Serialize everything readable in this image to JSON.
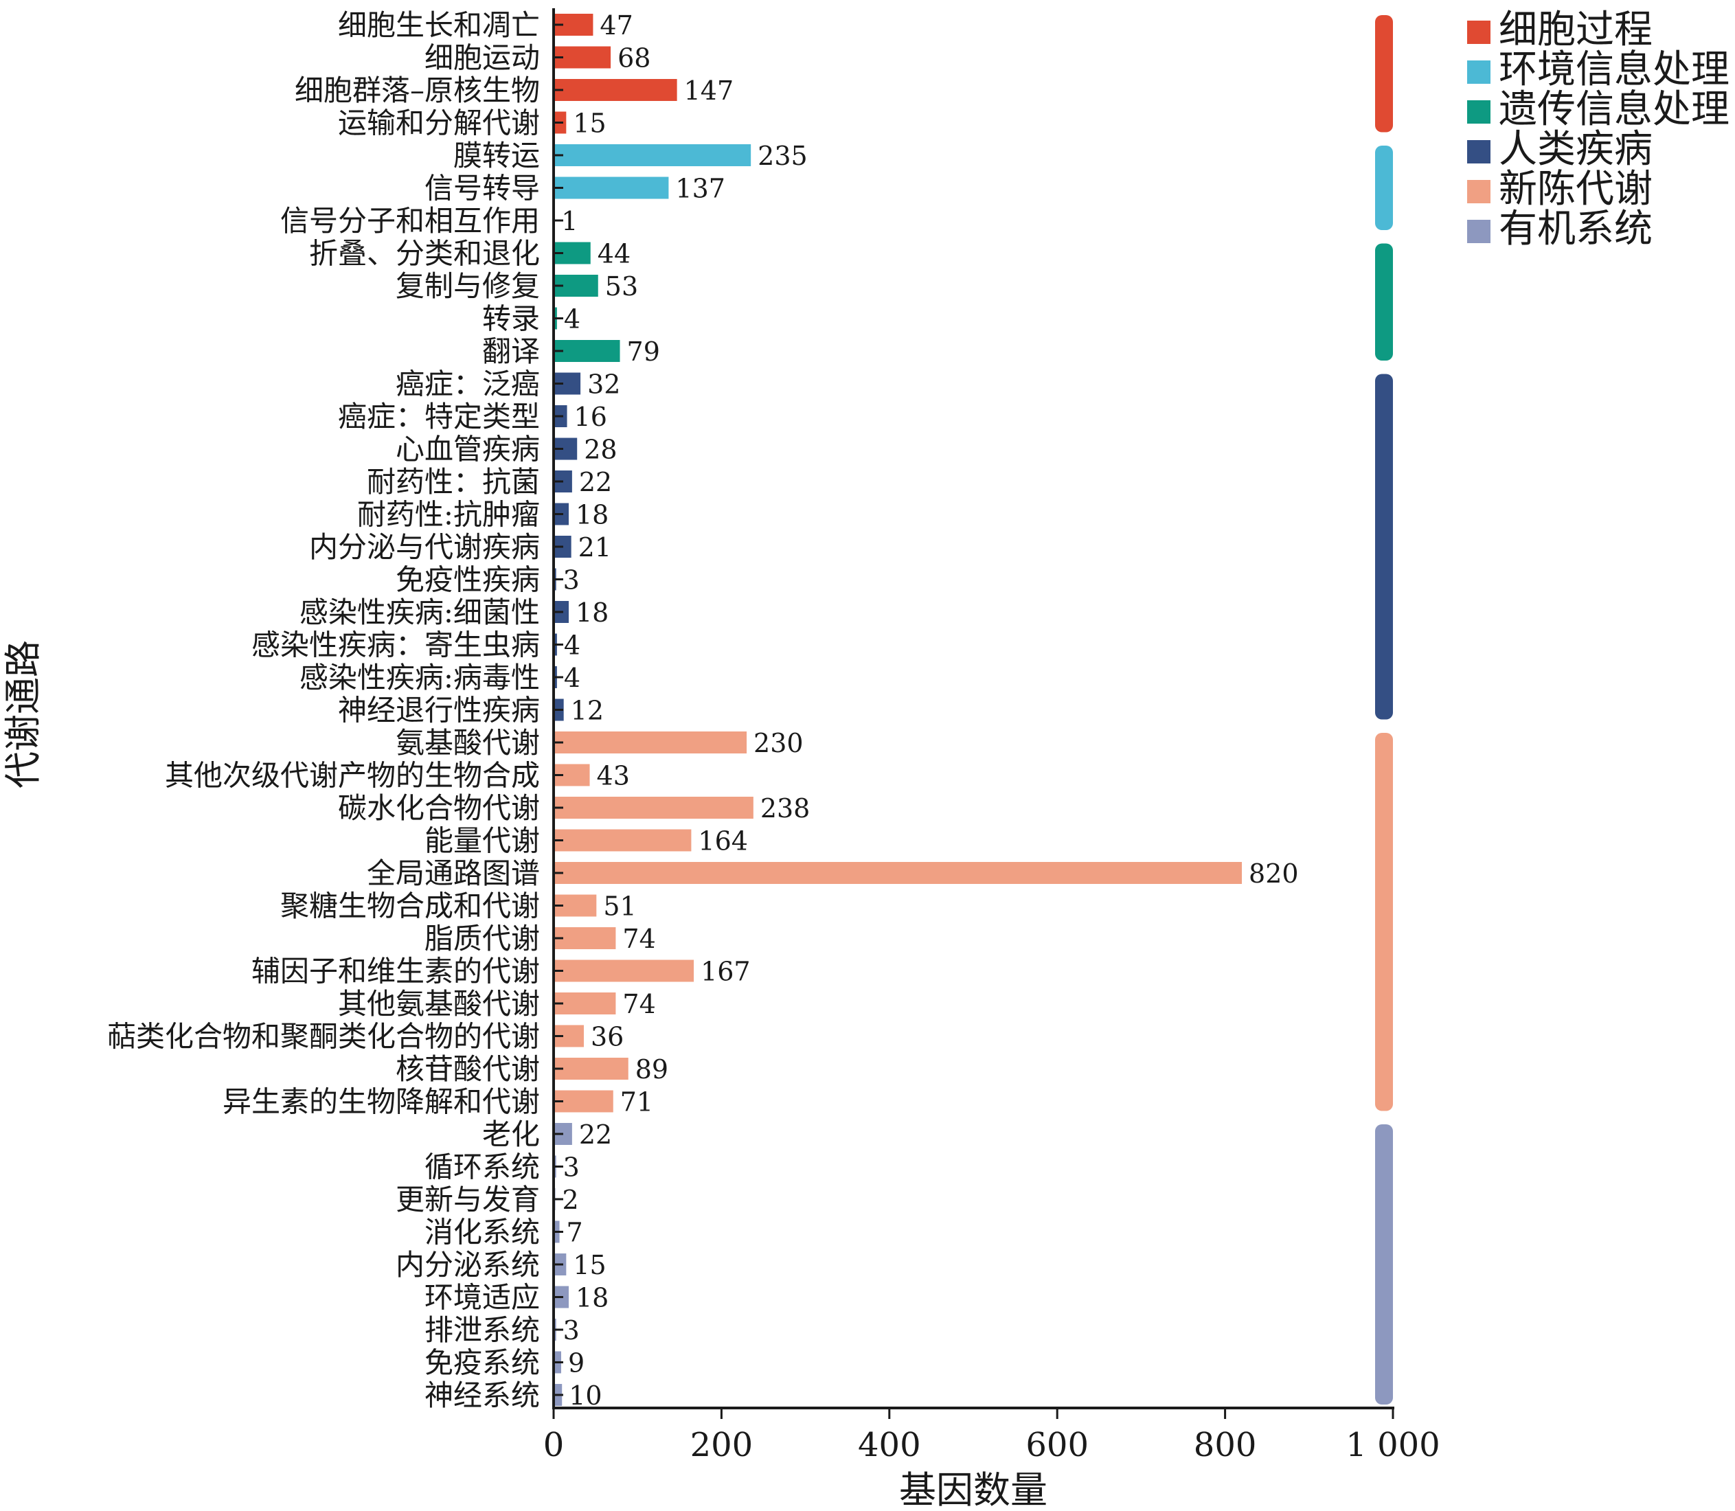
{
  "chart_data": {
    "type": "bar",
    "orientation": "horizontal",
    "xlabel": "基因数量",
    "ylabel": "代谢通路",
    "xlim": [
      0,
      1000
    ],
    "xticks": [
      {
        "value": 0,
        "label": "0"
      },
      {
        "value": 200,
        "label": "200"
      },
      {
        "value": 400,
        "label": "400"
      },
      {
        "value": 600,
        "label": "600"
      },
      {
        "value": 800,
        "label": "800"
      },
      {
        "value": 1000,
        "label": "1 000"
      }
    ],
    "grid": false,
    "legend_position": "top-right",
    "groups": [
      {
        "name": "细胞过程",
        "color": "#e04a32",
        "items": [
          {
            "label": "细胞生长和凋亡",
            "value": 47
          },
          {
            "label": "细胞运动",
            "value": 68
          },
          {
            "label": "细胞群落–原核生物",
            "value": 147
          },
          {
            "label": "运输和分解代谢",
            "value": 15
          }
        ]
      },
      {
        "name": "环境信息处理",
        "color": "#4cb9d5",
        "items": [
          {
            "label": "膜转运",
            "value": 235
          },
          {
            "label": "信号转导",
            "value": 137
          },
          {
            "label": "信号分子和相互作用",
            "value": 1
          }
        ]
      },
      {
        "name": "遗传信息处理",
        "color": "#0e9a82",
        "items": [
          {
            "label": "折叠、分类和退化",
            "value": 44
          },
          {
            "label": "复制与修复",
            "value": 53
          },
          {
            "label": "转录",
            "value": 4
          },
          {
            "label": "翻译",
            "value": 79
          }
        ]
      },
      {
        "name": "人类疾病",
        "color": "#344f84",
        "items": [
          {
            "label": "癌症：泛癌",
            "value": 32
          },
          {
            "label": "癌症：特定类型",
            "value": 16
          },
          {
            "label": "心血管疾病",
            "value": 28
          },
          {
            "label": "耐药性：抗菌",
            "value": 22
          },
          {
            "label": "耐药性:抗肿瘤",
            "value": 18
          },
          {
            "label": "内分泌与代谢疾病",
            "value": 21
          },
          {
            "label": "免疫性疾病",
            "value": 3
          },
          {
            "label": "感染性疾病:细菌性",
            "value": 18
          },
          {
            "label": "感染性疾病：寄生虫病",
            "value": 4
          },
          {
            "label": "感染性疾病:病毒性",
            "value": 4
          },
          {
            "label": "神经退行性疾病",
            "value": 12
          }
        ]
      },
      {
        "name": "新陈代谢",
        "color": "#f0a083",
        "items": [
          {
            "label": "氨基酸代谢",
            "value": 230
          },
          {
            "label": "其他次级代谢产物的生物合成",
            "value": 43
          },
          {
            "label": "碳水化合物代谢",
            "value": 238
          },
          {
            "label": "能量代谢",
            "value": 164
          },
          {
            "label": "全局通路图谱",
            "value": 820
          },
          {
            "label": "聚糖生物合成和代谢",
            "value": 51
          },
          {
            "label": "脂质代谢",
            "value": 74
          },
          {
            "label": "辅因子和维生素的代谢",
            "value": 167
          },
          {
            "label": "其他氨基酸代谢",
            "value": 74
          },
          {
            "label": "萜类化合物和聚酮类化合物的代谢",
            "value": 36
          },
          {
            "label": "核苷酸代谢",
            "value": 89
          },
          {
            "label": "异生素的生物降解和代谢",
            "value": 71
          }
        ]
      },
      {
        "name": "有机系统",
        "color": "#8d98bf",
        "items": [
          {
            "label": "老化",
            "value": 22
          },
          {
            "label": "循环系统",
            "value": 3
          },
          {
            "label": "更新与发育",
            "value": 2
          },
          {
            "label": "消化系统",
            "value": 7
          },
          {
            "label": "内分泌系统",
            "value": 15
          },
          {
            "label": "环境适应",
            "value": 18
          },
          {
            "label": "排泄系统",
            "value": 3
          },
          {
            "label": "免疫系统",
            "value": 9
          },
          {
            "label": "神经系统",
            "value": 10
          }
        ]
      }
    ]
  }
}
